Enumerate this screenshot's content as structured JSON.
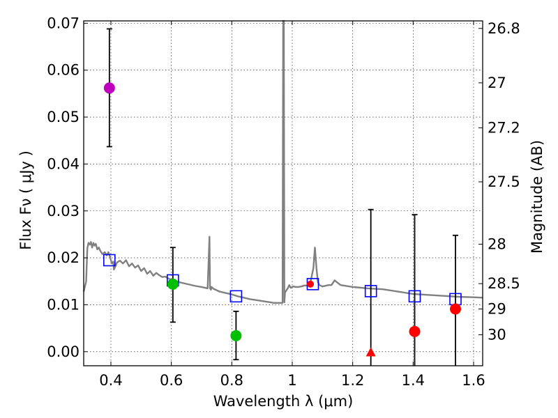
{
  "chart_data": {
    "type": "scatter",
    "xlabel": "Wavelength  λ (μm)",
    "ylabel_left": "Flux  Fν  ( μJy )",
    "ylabel_right": "Magnitude (AB)",
    "xlim": [
      0.31,
      1.63
    ],
    "ylim": [
      -0.003,
      0.0705
    ],
    "grid": true,
    "x_ticks": [
      0.4,
      0.6,
      0.8,
      1.0,
      1.2,
      1.4,
      1.6
    ],
    "x_tick_labels": [
      "0.4",
      "0.6",
      "0.8",
      "1",
      "1.2",
      "1.4",
      "1.6"
    ],
    "y_ticks": [
      0.0,
      0.01,
      0.02,
      0.03,
      0.04,
      0.05,
      0.06,
      0.07
    ],
    "y_tick_labels": [
      "0.00",
      "0.01",
      "0.02",
      "0.03",
      "0.04",
      "0.05",
      "0.06",
      "0.07"
    ],
    "right_ticks": [
      {
        "label": "26.8",
        "flux": 0.0689
      },
      {
        "label": "27",
        "flux": 0.0573
      },
      {
        "label": "27.2",
        "flux": 0.0477
      },
      {
        "label": "27.5",
        "flux": 0.0362
      },
      {
        "label": "28",
        "flux": 0.0229
      },
      {
        "label": "28.5",
        "flux": 0.0145
      },
      {
        "label": "29",
        "flux": 0.0091
      },
      {
        "label": "30",
        "flux": 0.0036
      }
    ],
    "observed": [
      {
        "x": 0.395,
        "y": 0.0562,
        "yerr_low": 0.0437,
        "yerr_high": 0.0688,
        "color": "#bf00bf",
        "marker": "circle"
      },
      {
        "x": 0.605,
        "y": 0.0144,
        "yerr_low": 0.0063,
        "yerr_high": 0.0222,
        "color": "#00bf00",
        "marker": "circle"
      },
      {
        "x": 0.814,
        "y": 0.0034,
        "yerr_low": -0.0017,
        "yerr_high": 0.0086,
        "color": "#00bf00",
        "marker": "circle"
      },
      {
        "x": 1.06,
        "y": 0.0144,
        "color": "#ff0000",
        "marker": "circle"
      },
      {
        "x": 1.26,
        "y": -0.0001,
        "yerr_low": -0.003,
        "yerr_high": 0.0303,
        "color": "#ff0000",
        "marker": "triangle"
      },
      {
        "x": 1.405,
        "y": 0.0043,
        "yerr_low": -0.003,
        "yerr_high": 0.0292,
        "color": "#ff0000",
        "marker": "circle"
      },
      {
        "x": 1.54,
        "y": 0.0091,
        "yerr_low": -0.003,
        "yerr_high": 0.0248,
        "color": "#ff0000",
        "marker": "circle"
      }
    ],
    "model_points": [
      {
        "x": 0.395,
        "y": 0.0195
      },
      {
        "x": 0.605,
        "y": 0.0152
      },
      {
        "x": 0.814,
        "y": 0.0118
      },
      {
        "x": 1.068,
        "y": 0.0144
      },
      {
        "x": 1.26,
        "y": 0.0129
      },
      {
        "x": 1.405,
        "y": 0.0118
      },
      {
        "x": 1.54,
        "y": 0.0112
      }
    ],
    "model_spectrum": {
      "color": "#808080",
      "x": [
        0.31,
        0.318,
        0.322,
        0.326,
        0.33,
        0.334,
        0.338,
        0.342,
        0.346,
        0.35,
        0.355,
        0.36,
        0.365,
        0.372,
        0.38,
        0.386,
        0.392,
        0.398,
        0.403,
        0.408,
        0.41,
        0.415,
        0.42,
        0.43,
        0.44,
        0.45,
        0.46,
        0.47,
        0.48,
        0.49,
        0.5,
        0.51,
        0.52,
        0.53,
        0.54,
        0.55,
        0.56,
        0.57,
        0.58,
        0.59,
        0.6,
        0.62,
        0.64,
        0.66,
        0.68,
        0.7,
        0.72,
        0.726,
        0.728,
        0.731,
        0.733,
        0.74,
        0.76,
        0.78,
        0.8,
        0.82,
        0.84,
        0.86,
        0.88,
        0.9,
        0.92,
        0.94,
        0.96,
        0.968,
        0.97,
        0.972,
        0.974,
        0.976,
        0.98,
        0.985,
        0.99,
        0.995,
        1.0,
        1.005,
        1.01,
        1.02,
        1.03,
        1.04,
        1.05,
        1.06,
        1.07,
        1.075,
        1.08,
        1.085,
        1.09,
        1.1,
        1.12,
        1.13,
        1.14,
        1.16,
        1.2,
        1.25,
        1.3,
        1.35,
        1.4,
        1.45,
        1.5,
        1.55,
        1.6,
        1.63
      ],
      "y": [
        0.0128,
        0.015,
        0.022,
        0.0232,
        0.0228,
        0.0234,
        0.0222,
        0.0232,
        0.0226,
        0.023,
        0.0218,
        0.0222,
        0.0215,
        0.0208,
        0.0212,
        0.0205,
        0.0212,
        0.02,
        0.0188,
        0.0192,
        0.0175,
        0.0182,
        0.019,
        0.0194,
        0.0188,
        0.0195,
        0.0182,
        0.0188,
        0.0179,
        0.0184,
        0.0172,
        0.0178,
        0.0166,
        0.0172,
        0.0162,
        0.0168,
        0.0163,
        0.0159,
        0.016,
        0.0156,
        0.0153,
        0.0149,
        0.0146,
        0.0143,
        0.014,
        0.0138,
        0.0135,
        0.0245,
        0.0135,
        0.0132,
        0.0138,
        0.0134,
        0.0128,
        0.0125,
        0.0122,
        0.0118,
        0.0115,
        0.0112,
        0.011,
        0.0108,
        0.0106,
        0.0104,
        0.0104,
        0.0104,
        0.0735,
        0.0735,
        0.0105,
        0.0126,
        0.013,
        0.0135,
        0.0142,
        0.0136,
        0.0138,
        0.0139,
        0.0138,
        0.0138,
        0.0139,
        0.0141,
        0.0141,
        0.0147,
        0.0178,
        0.0222,
        0.0178,
        0.0148,
        0.0142,
        0.0139,
        0.0142,
        0.0142,
        0.0152,
        0.0142,
        0.0138,
        0.0135,
        0.0133,
        0.0128,
        0.0123,
        0.0121,
        0.0119,
        0.0117,
        0.0116,
        0.0115
      ]
    }
  }
}
